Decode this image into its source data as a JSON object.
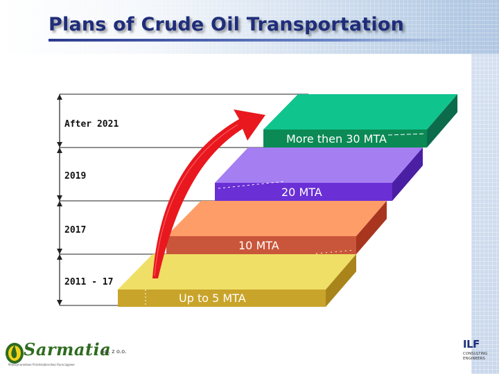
{
  "slide": {
    "title": "Plans of Crude Oil Transportation"
  },
  "stages": [
    {
      "period": "After 2021",
      "capacity": "More then 30 MTA",
      "top_color": "#0fbf8a",
      "front_color": "#0b8a55",
      "side_color": "#0b6b4a",
      "text_color": "#ffffff"
    },
    {
      "period": "2019",
      "capacity": "20 MTA",
      "top_color": "#a57ef2",
      "front_color": "#6a30d6",
      "side_color": "#4a1fa3",
      "text_color": "#ffffff"
    },
    {
      "period": "2017",
      "capacity": "10 MTA",
      "top_color": "#ff9d68",
      "front_color": "#c9563a",
      "side_color": "#a8351e",
      "text_color": "#ffffff"
    },
    {
      "period": "2011 - 17",
      "capacity": "Up to 5 MTA",
      "top_color": "#efdf66",
      "front_color": "#c9a42a",
      "side_color": "#a8841a",
      "text_color": "#ffffff"
    }
  ],
  "logos": {
    "left": {
      "name": "Sarmatia",
      "suffix": "Sp. z o.o.",
      "tagline": "Międzynarodowe Przedsiębiorstwo Rurociągowe"
    },
    "right": {
      "mark": "ILF",
      "line1": "CONSULTING",
      "line2": "ENGINEERS"
    }
  },
  "arrow": {
    "color": "#e8181e"
  }
}
